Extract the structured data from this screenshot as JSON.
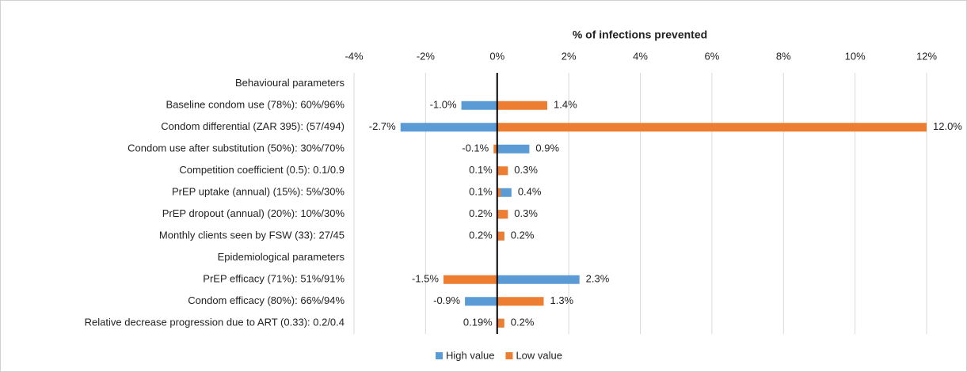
{
  "chart_data": {
    "type": "tornado",
    "x_label": "% of infections prevented",
    "categories": [
      "Behavioural parameters",
      "Baseline condom use (78%): 60%/96%",
      "Condom differential (ZAR 395): (57/494)",
      "Condom use after substitution (50%): 30%/70%",
      "Competition coefficient (0.5): 0.1/0.9",
      "PrEP uptake (annual) (15%): 5%/30%",
      "PrEP dropout (annual) (20%): 10%/30%",
      "Monthly clients seen by FSW (33): 27/45",
      "Epidemiological parameters",
      "PrEP efficacy (71%): 51%/91%",
      "Condom efficacy (80%): 66%/94%",
      "Relative decrease progression due to ART (0.33): 0.2/0.4"
    ],
    "series": [
      {
        "name": "High value",
        "color": "#5b9bd5",
        "values": [
          null,
          -1.0,
          -2.7,
          0.9,
          0.1,
          0.4,
          0.2,
          0.2,
          null,
          2.3,
          -0.9,
          0.19
        ],
        "value_labels": [
          null,
          "-1.0%",
          "-2.7%",
          "0.9%",
          "0.1%",
          "0.4%",
          "0.2%",
          "0.2%",
          null,
          "2.3%",
          "-0.9%",
          "0.19%"
        ]
      },
      {
        "name": "Low value",
        "color": "#ed7d31",
        "values": [
          null,
          1.4,
          12.0,
          -0.1,
          0.3,
          0.1,
          0.3,
          0.2,
          null,
          -1.5,
          1.3,
          0.2
        ],
        "value_labels": [
          null,
          "1.4%",
          "12.0%",
          "-0.1%",
          "0.3%",
          "0.1%",
          "0.3%",
          "0.2%",
          null,
          "-1.5%",
          "1.3%",
          "0.2%"
        ]
      }
    ],
    "xlim": [
      -4,
      12
    ],
    "xticks": [
      {
        "value": -4,
        "label": "-4%"
      },
      {
        "value": -2,
        "label": "-2%"
      },
      {
        "value": 0,
        "label": "0%"
      },
      {
        "value": 2,
        "label": "2%"
      },
      {
        "value": 4,
        "label": "4%"
      },
      {
        "value": 6,
        "label": "6%"
      },
      {
        "value": 8,
        "label": "8%"
      },
      {
        "value": 10,
        "label": "10%"
      },
      {
        "value": 12,
        "label": "12%"
      }
    ],
    "grid": true,
    "legend": "bottom"
  }
}
